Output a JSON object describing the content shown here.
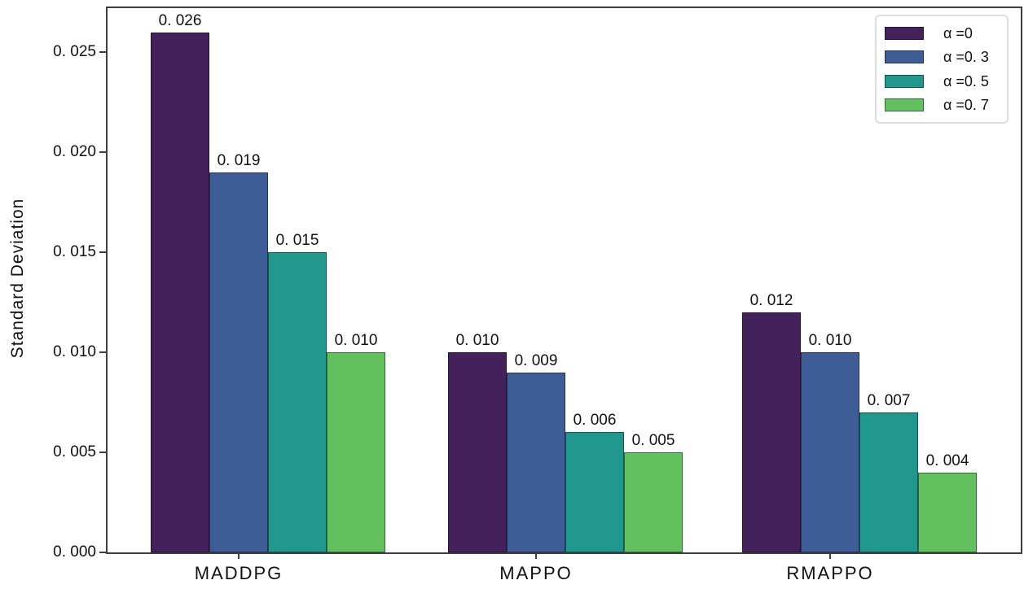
{
  "chart_data": {
    "type": "bar",
    "title": "",
    "xlabel": "",
    "ylabel": "Standard Deviation",
    "categories": [
      "MADDPG",
      "MAPPO",
      "RMAPPO"
    ],
    "series": [
      {
        "name": "α =0",
        "color": "#45215c",
        "values": [
          0.026,
          0.01,
          0.012
        ],
        "bar_labels": [
          "0. 026",
          "0. 010",
          "0. 012"
        ]
      },
      {
        "name": "α =0. 3",
        "color": "#3e5c96",
        "values": [
          0.019,
          0.009,
          0.01
        ],
        "bar_labels": [
          "0. 019",
          "0. 009",
          "0. 010"
        ]
      },
      {
        "name": "α =0. 5",
        "color": "#21988e",
        "values": [
          0.015,
          0.006,
          0.007
        ],
        "bar_labels": [
          "0. 015",
          "0. 006",
          "0. 007"
        ]
      },
      {
        "name": "α =0. 7",
        "color": "#63c05f",
        "values": [
          0.01,
          0.005,
          0.004
        ],
        "bar_labels": [
          "0. 010",
          "0. 005",
          "0. 004"
        ]
      }
    ],
    "y_ticks": [
      {
        "value": 0.0,
        "label": "0. 000"
      },
      {
        "value": 0.005,
        "label": "0. 005"
      },
      {
        "value": 0.01,
        "label": "0. 010"
      },
      {
        "value": 0.015,
        "label": "0. 015"
      },
      {
        "value": 0.02,
        "label": "0. 020"
      },
      {
        "value": 0.025,
        "label": "0. 025"
      }
    ],
    "ylim": [
      0,
      0.0272
    ],
    "grid": false,
    "legend_position": "upper-right",
    "value_labels_shown": true
  },
  "colors": {
    "axis": "#3d3d3d",
    "legend_border": "#dcdcdc",
    "text": "#111111"
  }
}
